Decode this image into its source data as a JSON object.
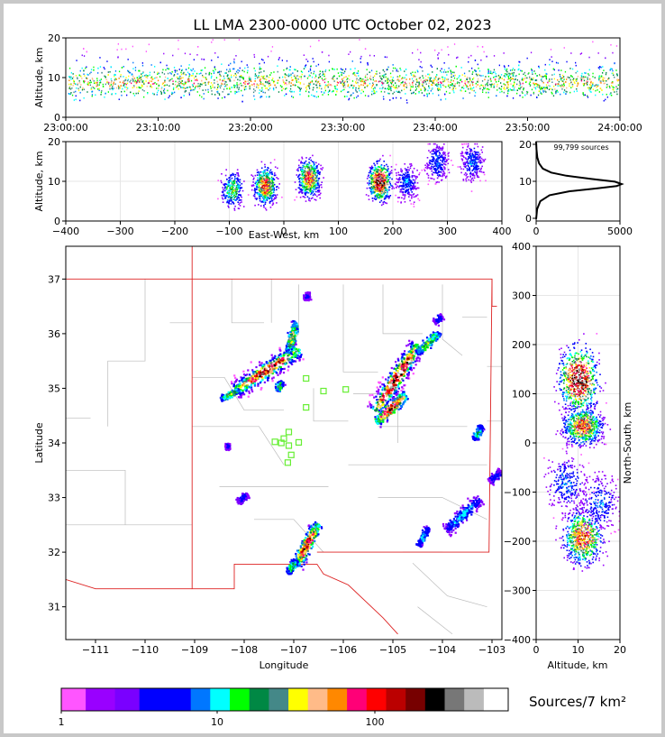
{
  "title": "LL LMA 2300-0000 UTC October 02, 2023",
  "colors": {
    "scale": [
      "#ff55ff",
      "#9900ff",
      "#7a00ff",
      "#0000ff",
      "#0000ff",
      "#0077ff",
      "#00ffff",
      "#00ff00",
      "#008844",
      "#448888",
      "#ffff00",
      "#ffbb88",
      "#ff8800",
      "#ff0077",
      "#ff0000",
      "#bb0000",
      "#770000",
      "#000000",
      "#777777",
      "#bbbbbb",
      "#ffffff"
    ],
    "state_border": "#dd2222",
    "county_lines": "#bbbbbb",
    "stations": "#66ee33"
  },
  "chart_data": [
    {
      "type": "heatmap",
      "name": "time-height",
      "ylabel": "Altitude, km",
      "xlim": [
        "23:00:00",
        "24:00:00"
      ],
      "ylim": [
        0,
        20
      ],
      "x_ticks": [
        "23:00:00",
        "23:10:00",
        "23:20:00",
        "23:30:00",
        "23:40:00",
        "23:50:00",
        "24:00:00"
      ],
      "y_ticks": [
        "0",
        "10",
        "20"
      ],
      "description_peak_altitude_km": 9
    },
    {
      "type": "heatmap",
      "name": "east-west-altitude",
      "xlabel": "East-West, km",
      "ylabel": "Altitude, km",
      "xlim": [
        -400,
        400
      ],
      "ylim": [
        0,
        20
      ],
      "x_ticks": [
        "−400",
        "−300",
        "−200",
        "−100",
        "0",
        "100",
        "200",
        "300",
        "400"
      ],
      "y_ticks": [
        "0",
        "10",
        "20"
      ],
      "clusters": [
        {
          "x": -95,
          "y": 8,
          "density": "medium"
        },
        {
          "x": -35,
          "y": 9,
          "density": "high"
        },
        {
          "x": 45,
          "y": 11,
          "density": "high"
        },
        {
          "x": 175,
          "y": 10,
          "density": "very-high"
        },
        {
          "x": 225,
          "y": 10,
          "density": "low"
        },
        {
          "x": 280,
          "y": 15,
          "density": "low"
        },
        {
          "x": 345,
          "y": 15,
          "density": "low"
        }
      ]
    },
    {
      "type": "line",
      "name": "altitude-histogram",
      "annotation": "99,799 sources",
      "xlim": [
        0,
        5000
      ],
      "ylim": [
        0,
        20
      ],
      "x_ticks": [
        "0",
        "5000"
      ],
      "y_ticks": [
        "0",
        "10",
        "20"
      ],
      "x": [
        0,
        60,
        250,
        800,
        2000,
        3600,
        4800,
        5100,
        4700,
        3300,
        1800,
        900,
        400,
        180,
        70,
        20,
        0
      ],
      "y": [
        0.5,
        3,
        5,
        6.5,
        7.5,
        8.2,
        8.8,
        9.3,
        9.9,
        10.6,
        11.4,
        12.2,
        13.2,
        14.5,
        16,
        18,
        20
      ]
    },
    {
      "type": "scatter",
      "name": "plan-view",
      "xlabel": "Longitude",
      "ylabel": "Latitude",
      "xlim": [
        -111.6,
        -102.8
      ],
      "ylim": [
        30.4,
        37.6
      ],
      "x_ticks": [
        "−111",
        "−110",
        "−109",
        "−108",
        "−107",
        "−106",
        "−105",
        "−104",
        "−103"
      ],
      "y_ticks": [
        "31",
        "32",
        "33",
        "34",
        "35",
        "36",
        "37"
      ],
      "stations": [
        {
          "lon": -106.75,
          "lat": 35.18
        },
        {
          "lon": -106.4,
          "lat": 34.95
        },
        {
          "lon": -105.95,
          "lat": 34.98
        },
        {
          "lon": -106.75,
          "lat": 34.65
        },
        {
          "lon": -107.1,
          "lat": 34.2
        },
        {
          "lon": -107.2,
          "lat": 34.08
        },
        {
          "lon": -107.38,
          "lat": 34.02
        },
        {
          "lon": -107.25,
          "lat": 34.0
        },
        {
          "lon": -107.1,
          "lat": 33.95
        },
        {
          "lon": -106.9,
          "lat": 34.01
        },
        {
          "lon": -107.05,
          "lat": 33.78
        },
        {
          "lon": -107.12,
          "lat": 33.64
        }
      ],
      "storms": [
        {
          "lon": -107.55,
          "lat": 35.35,
          "len": 1.5,
          "angle": 30,
          "level": 16
        },
        {
          "lon": -104.95,
          "lat": 35.2,
          "len": 1.5,
          "angle": 55,
          "level": 18
        },
        {
          "lon": -105.05,
          "lat": 34.65,
          "len": 0.8,
          "angle": 40,
          "level": 15
        },
        {
          "lon": -106.75,
          "lat": 32.15,
          "len": 0.9,
          "angle": 60,
          "level": 15
        },
        {
          "lon": -107.05,
          "lat": 35.95,
          "len": 0.6,
          "angle": 75,
          "level": 10
        },
        {
          "lon": -108.3,
          "lat": 34.9,
          "len": 0.4,
          "angle": 25,
          "level": 9
        },
        {
          "lon": -104.3,
          "lat": 35.85,
          "len": 0.6,
          "angle": 40,
          "level": 9
        },
        {
          "lon": -103.6,
          "lat": 32.7,
          "len": 0.9,
          "angle": 40,
          "level": 6
        },
        {
          "lon": -103.3,
          "lat": 34.2,
          "len": 0.3,
          "angle": 60,
          "level": 7
        },
        {
          "lon": -104.4,
          "lat": 32.3,
          "len": 0.4,
          "angle": 60,
          "level": 6
        },
        {
          "lon": -107.05,
          "lat": 31.75,
          "len": 0.3,
          "angle": 60,
          "level": 8
        },
        {
          "lon": -106.75,
          "lat": 36.7,
          "len": 0.15,
          "angle": 90,
          "level": 3
        },
        {
          "lon": -104.1,
          "lat": 36.28,
          "len": 0.2,
          "angle": 40,
          "level": 4
        },
        {
          "lon": -108.05,
          "lat": 33.0,
          "len": 0.25,
          "angle": 30,
          "level": 4
        },
        {
          "lon": -108.35,
          "lat": 33.95,
          "len": 0.1,
          "angle": 0,
          "level": 3
        },
        {
          "lon": -102.95,
          "lat": 33.4,
          "len": 0.3,
          "angle": 45,
          "level": 4
        },
        {
          "lon": -107.3,
          "lat": 35.05,
          "len": 0.2,
          "angle": 60,
          "level": 8
        }
      ]
    },
    {
      "type": "heatmap",
      "name": "altitude-north-south",
      "xlabel": "Altitude, km",
      "ylabel": "North-South, km",
      "xlim": [
        0,
        20
      ],
      "ylim": [
        -400,
        400
      ],
      "x_ticks": [
        "0",
        "10",
        "20"
      ],
      "y_ticks": [
        "−400",
        "−300",
        "−200",
        "−100",
        "0",
        "100",
        "200",
        "300",
        "400"
      ],
      "clusters": [
        {
          "x": 10,
          "y": 130,
          "density": "very-high"
        },
        {
          "x": 11,
          "y": 35,
          "density": "high"
        },
        {
          "x": 11,
          "y": -190,
          "density": "high"
        },
        {
          "x": 15,
          "y": -120,
          "density": "low"
        },
        {
          "x": 7,
          "y": -80,
          "density": "low"
        }
      ]
    }
  ],
  "colorbar": {
    "label": "Sources/7 km²",
    "tick_labels": [
      "1",
      "10",
      "100"
    ]
  }
}
